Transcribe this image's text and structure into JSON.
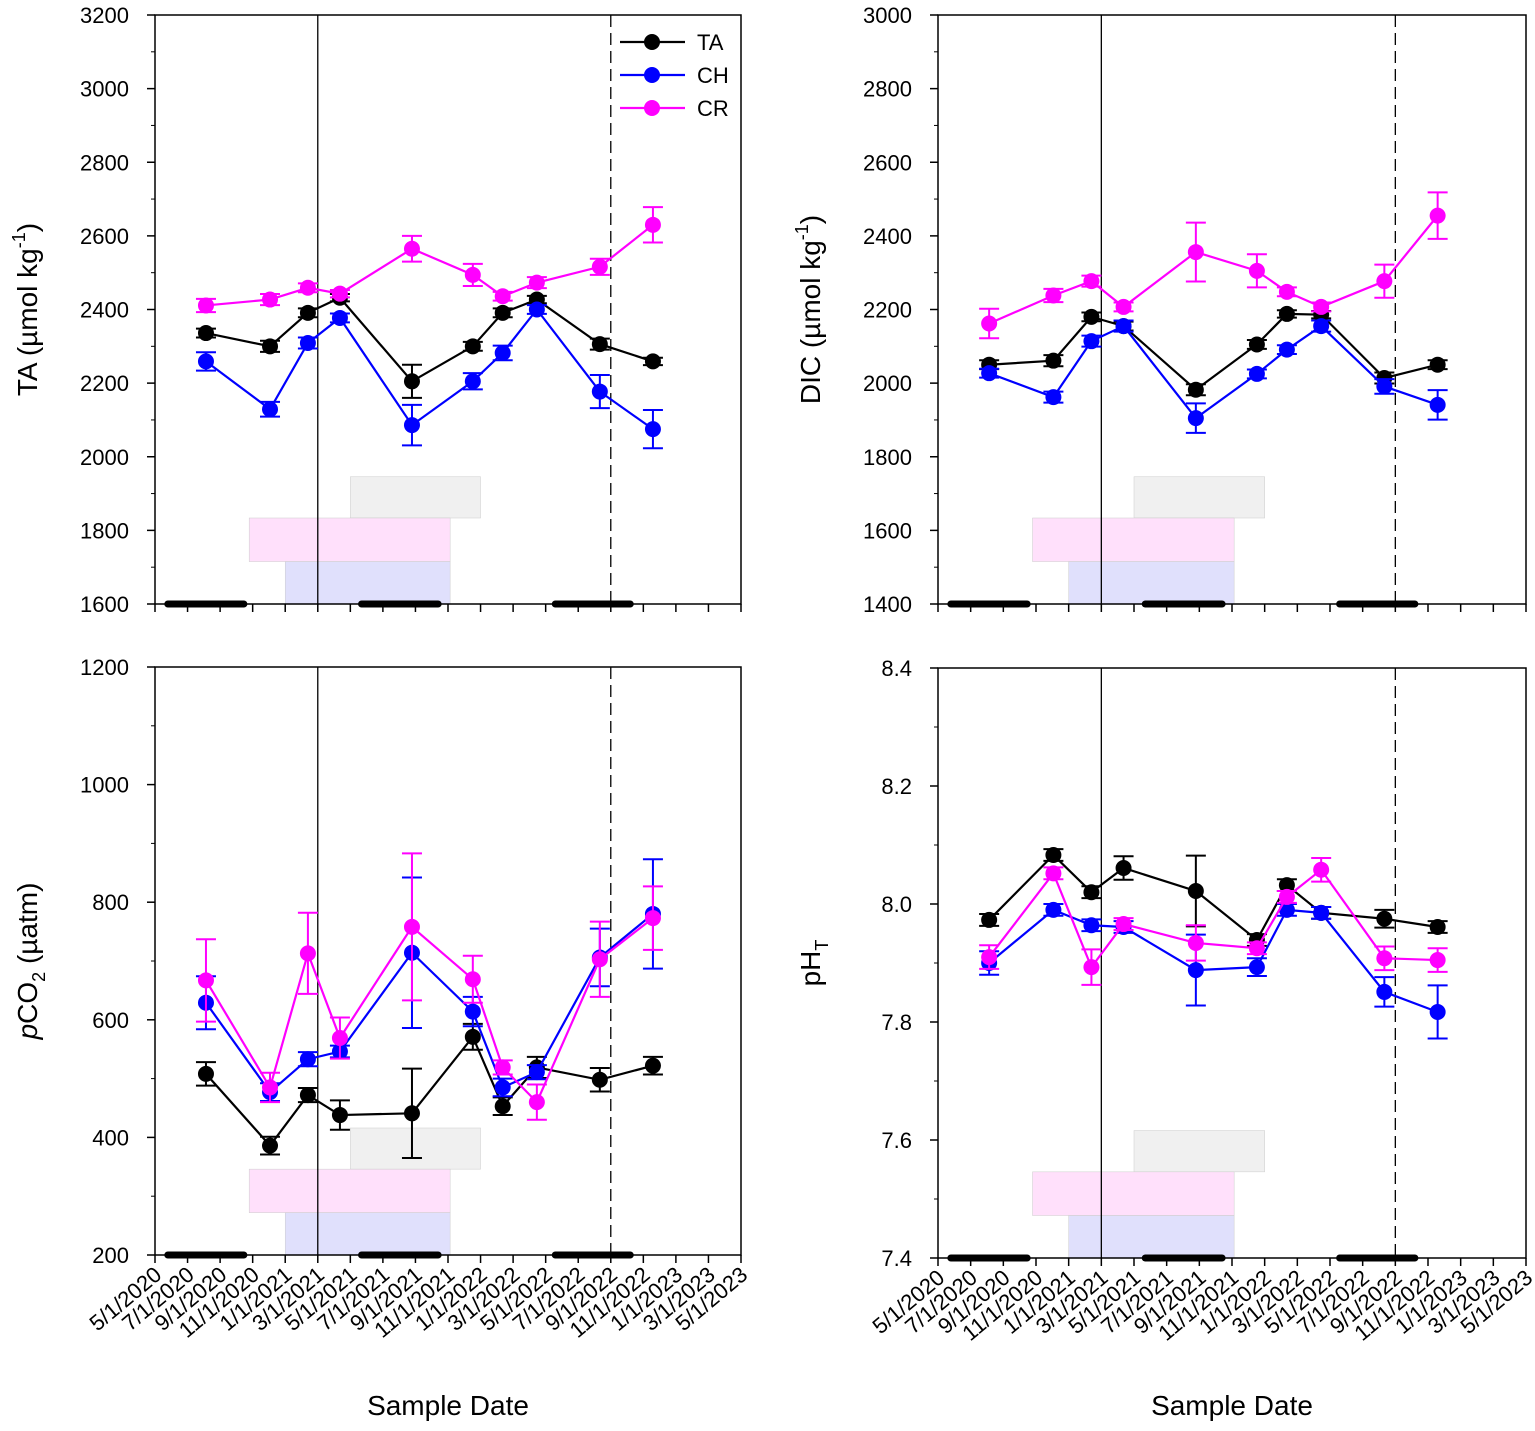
{
  "colors": {
    "TA": "#000000",
    "CH": "#0000ff",
    "CR": "#ff00ff"
  },
  "x_tick_labels": [
    "5/1/2020",
    "7/1/2020",
    "9/1/2020",
    "11/1/2020",
    "1/1/2021",
    "3/1/2021",
    "5/1/2021",
    "7/1/2021",
    "9/1/2021",
    "11/1/2021",
    "1/1/2022",
    "3/1/2022",
    "5/1/2022",
    "7/1/2022",
    "9/1/2022",
    "11/1/2022",
    "1/1/2023",
    "3/1/2023",
    "5/1/2023"
  ],
  "xlim": [
    "2020-05-01",
    "2023-05-01"
  ],
  "sample_dates": [
    "2020-08-05",
    "2020-12-03",
    "2021-02-13",
    "2021-04-12",
    "2021-08-25",
    "2021-12-17",
    "2022-02-12",
    "2022-04-15",
    "2022-08-11",
    "2022-11-19"
  ],
  "annotations": {
    "solid_line_date": "2021-03-01",
    "dashed_line_date": "2022-09-01",
    "gray_band": [
      "2021-05-01",
      "2022-01-01"
    ],
    "pink_band": [
      "2020-10-25",
      "2021-11-05"
    ],
    "blue_band": [
      "2021-01-01",
      "2021-11-05"
    ],
    "black_bars": [
      [
        "2020-05-25",
        "2020-10-15"
      ],
      [
        "2021-05-22",
        "2021-10-13"
      ],
      [
        "2022-05-19",
        "2022-10-07"
      ]
    ]
  },
  "chart_data": [
    {
      "type": "line",
      "title": "",
      "ylabel": {
        "main": "TA (µmol kg",
        "sup": "-1",
        "end": ")"
      },
      "xlabel": "",
      "ylim": [
        1600,
        3200
      ],
      "yticks": [
        "1600",
        "1800",
        "2000",
        "2200",
        "2400",
        "2600",
        "2800",
        "3000",
        "3200"
      ],
      "legend": {
        "placement": "top-right",
        "entries": [
          "TA",
          "CH",
          "CR"
        ]
      },
      "series": [
        {
          "name": "TA",
          "values": [
            2336,
            2300,
            2391,
            2432,
            2205,
            2300,
            2391,
            2427,
            2306,
            2259
          ],
          "err": [
            12,
            15,
            12,
            10,
            45,
            12,
            12,
            10,
            15,
            10
          ]
        },
        {
          "name": "CH",
          "values": [
            2259,
            2129,
            2309,
            2377,
            2086,
            2205,
            2282,
            2400,
            2177,
            2075
          ],
          "err": [
            25,
            20,
            15,
            12,
            55,
            22,
            20,
            12,
            45,
            52
          ]
        },
        {
          "name": "CR",
          "values": [
            2411,
            2427,
            2459,
            2443,
            2565,
            2494,
            2436,
            2473,
            2516,
            2630
          ],
          "err": [
            18,
            15,
            12,
            10,
            35,
            30,
            12,
            15,
            22,
            48
          ]
        }
      ]
    },
    {
      "type": "line",
      "title": "",
      "ylabel": {
        "main": "DIC (µmol kg",
        "sup": "-1",
        "end": ")"
      },
      "xlabel": "",
      "ylim": [
        1400,
        3000
      ],
      "yticks": [
        "1400",
        "1600",
        "1800",
        "2000",
        "2200",
        "2400",
        "2600",
        "2800",
        "3000"
      ],
      "series": [
        {
          "name": "TA",
          "values": [
            2050,
            2061,
            2180,
            2155,
            1982,
            2105,
            2188,
            2186,
            2014,
            2050
          ],
          "err": [
            12,
            15,
            12,
            12,
            15,
            12,
            10,
            10,
            15,
            12
          ]
        },
        {
          "name": "CH",
          "values": [
            2027,
            1962,
            2114,
            2155,
            1905,
            2025,
            2091,
            2155,
            1991,
            1941
          ],
          "err": [
            12,
            15,
            15,
            15,
            40,
            12,
            12,
            15,
            20,
            40
          ]
        },
        {
          "name": "CR",
          "values": [
            2162,
            2238,
            2277,
            2207,
            2356,
            2305,
            2248,
            2207,
            2277,
            2455
          ],
          "err": [
            40,
            18,
            15,
            12,
            80,
            45,
            12,
            12,
            45,
            63
          ]
        }
      ]
    },
    {
      "type": "line",
      "title": "",
      "ylabel": {
        "italic": "p",
        "main": "CO",
        "sub": "2",
        "end": " (µatm)"
      },
      "xlabel": "Sample Date",
      "ylim": [
        200,
        1200
      ],
      "yticks": [
        "200",
        "400",
        "600",
        "800",
        "1000",
        "1200"
      ],
      "series": [
        {
          "name": "TA",
          "values": [
            508,
            386,
            472,
            438,
            441,
            571,
            453,
            519,
            498,
            522
          ],
          "err": [
            20,
            15,
            12,
            25,
            76,
            22,
            15,
            18,
            20,
            15
          ]
        },
        {
          "name": "CH",
          "values": [
            629,
            477,
            533,
            546,
            714,
            614,
            485,
            511,
            706,
            780
          ],
          "err": [
            45,
            15,
            12,
            10,
            128,
            25,
            15,
            12,
            49,
            93
          ]
        },
        {
          "name": "CR",
          "values": [
            667,
            485,
            713,
            569,
            758,
            669,
            519,
            460,
            703,
            773
          ],
          "err": [
            70,
            25,
            69,
            35,
            125,
            40,
            12,
            30,
            64,
            54
          ]
        }
      ]
    },
    {
      "type": "line",
      "title": "",
      "ylabel": {
        "main": "pH",
        "sub": "T",
        "end": ""
      },
      "xlabel": "Sample Date",
      "ylim": [
        7.4,
        8.4
      ],
      "yticks": [
        "7.4",
        "7.6",
        "7.8",
        "8.0",
        "8.2",
        "8.4"
      ],
      "series": [
        {
          "name": "TA",
          "values": [
            7.973,
            8.083,
            8.02,
            8.061,
            8.022,
            7.939,
            8.032,
            7.985,
            7.975,
            7.961
          ],
          "err": [
            0.01,
            0.01,
            0.01,
            0.02,
            0.06,
            0.01,
            0.01,
            0.01,
            0.015,
            0.01
          ]
        },
        {
          "name": "CH",
          "values": [
            7.9,
            7.99,
            7.964,
            7.961,
            7.888,
            7.893,
            7.99,
            7.985,
            7.851,
            7.817
          ],
          "err": [
            0.02,
            0.01,
            0.01,
            0.01,
            0.06,
            0.015,
            0.01,
            0.01,
            0.025,
            0.045
          ]
        },
        {
          "name": "CR",
          "values": [
            7.91,
            8.052,
            7.893,
            7.966,
            7.934,
            7.925,
            8.012,
            8.058,
            7.908,
            7.905
          ],
          "err": [
            0.02,
            0.01,
            0.03,
            0.01,
            0.03,
            0.01,
            0.01,
            0.02,
            0.02,
            0.02
          ]
        }
      ]
    }
  ]
}
